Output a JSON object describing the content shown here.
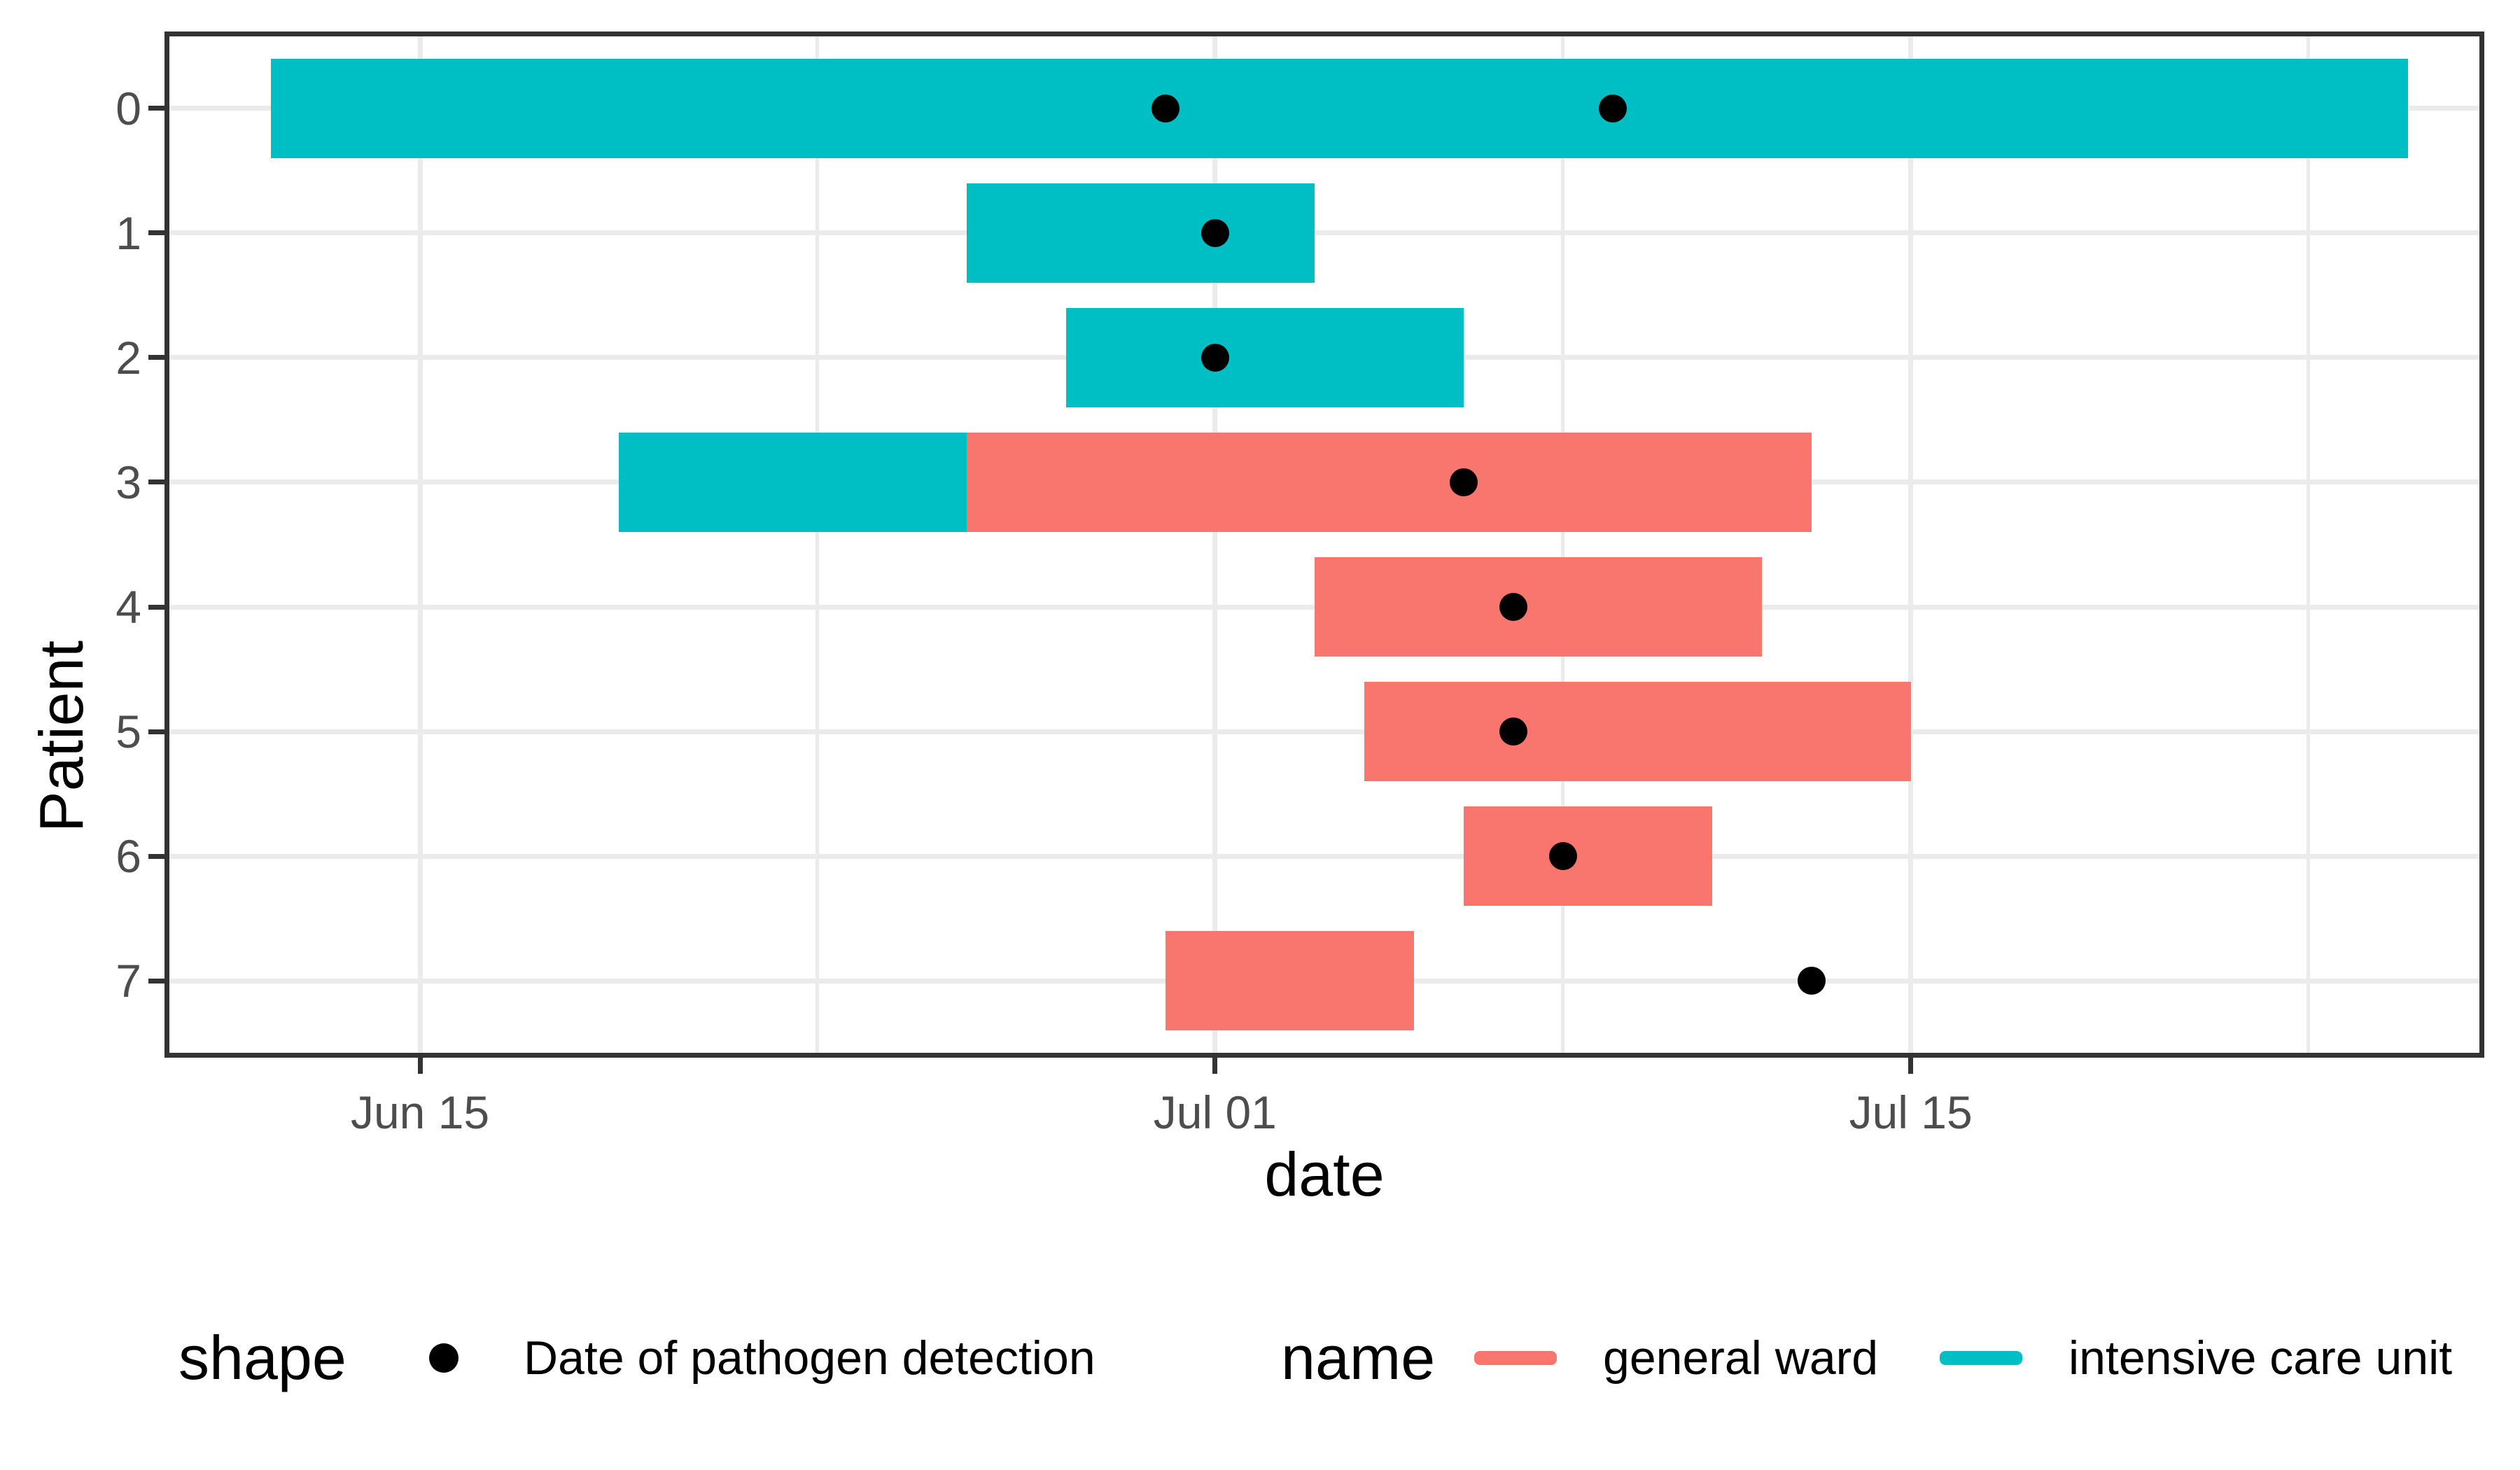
{
  "chart_data": {
    "type": "gantt",
    "description": "Hospital stay timeline per patient with ward type segments and pathogen detection dates",
    "xlabel": "date",
    "ylabel": "Patient",
    "x_tick_labels": [
      "Jun 15",
      "Jul 01",
      "Jul 15"
    ],
    "x_minor_gridline_dates": [
      "Jun 23",
      "Jul 08",
      "Jul 23"
    ],
    "x_axis_range": [
      "Jun 10",
      "Jul 26"
    ],
    "x_domain": {
      "min_day": 8.9,
      "max_day": 55.5,
      "day_zero": "Jun 01 = day 0"
    },
    "y_categories": [
      "0",
      "1",
      "2",
      "3",
      "4",
      "5",
      "6",
      "7"
    ],
    "grid": "major vertical at date breaks, minor between, horizontal at each patient row",
    "legend_position": "bottom",
    "patients": [
      {
        "id": "0",
        "stays": [
          {
            "ward": "intensive care unit",
            "start": "Jun 12",
            "end": "Jul 25"
          }
        ],
        "detections": [
          "Jun 30",
          "Jul 09"
        ]
      },
      {
        "id": "1",
        "stays": [
          {
            "ward": "intensive care unit",
            "start": "Jun 26",
            "end": "Jul 03"
          }
        ],
        "detections": [
          "Jul 01"
        ]
      },
      {
        "id": "2",
        "stays": [
          {
            "ward": "intensive care unit",
            "start": "Jun 28",
            "end": "Jul 06"
          }
        ],
        "detections": [
          "Jul 01"
        ]
      },
      {
        "id": "3",
        "stays": [
          {
            "ward": "intensive care unit",
            "start": "Jun 19",
            "end": "Jun 26"
          },
          {
            "ward": "general ward",
            "start": "Jun 26",
            "end": "Jul 13"
          }
        ],
        "detections": [
          "Jul 06"
        ]
      },
      {
        "id": "4",
        "stays": [
          {
            "ward": "general ward",
            "start": "Jul 03",
            "end": "Jul 12"
          }
        ],
        "detections": [
          "Jul 07"
        ]
      },
      {
        "id": "5",
        "stays": [
          {
            "ward": "general ward",
            "start": "Jul 04",
            "end": "Jul 15"
          }
        ],
        "detections": [
          "Jul 07"
        ]
      },
      {
        "id": "6",
        "stays": [
          {
            "ward": "general ward",
            "start": "Jul 06",
            "end": "Jul 11"
          }
        ],
        "detections": [
          "Jul 08"
        ]
      },
      {
        "id": "7",
        "stays": [
          {
            "ward": "general ward",
            "start": "Jun 30",
            "end": "Jul 05"
          }
        ],
        "detections": [
          "Jul 13"
        ]
      }
    ],
    "legend": {
      "shape_title": "shape",
      "shape_label": "Date of pathogen detection",
      "name_title": "name",
      "entries": [
        {
          "label": "general ward",
          "color": "#F8766D"
        },
        {
          "label": "intensive care unit",
          "color": "#00BFC4"
        }
      ]
    },
    "colors": {
      "general ward": "#F8766D",
      "intensive care unit": "#00BFC4",
      "detection_point": "#000000",
      "grid_major": "#EBEBEB",
      "grid_minor": "#EBEBEB",
      "panel_border": "#333333",
      "tick_mark": "#333333",
      "tick_label_text": "#4D4D4D",
      "title_text": "#000000",
      "background": "#FFFFFF"
    }
  }
}
